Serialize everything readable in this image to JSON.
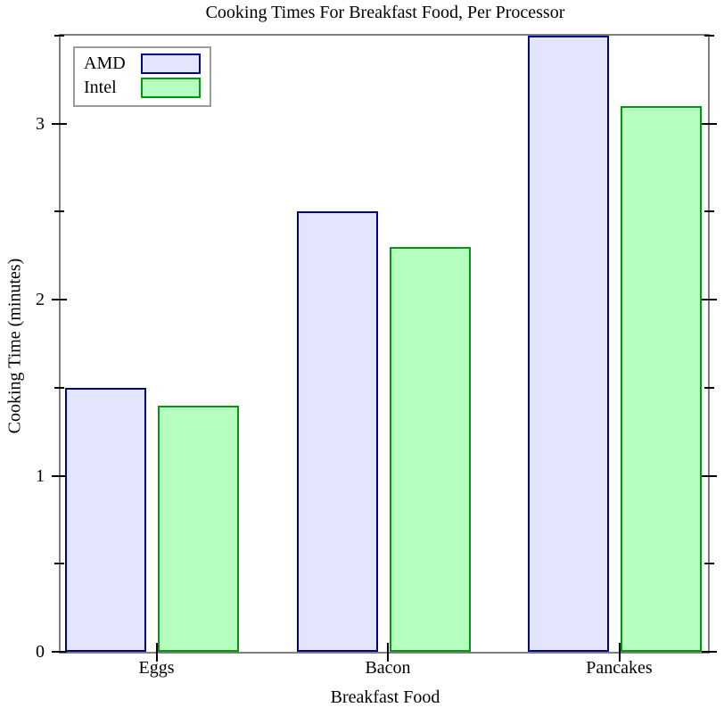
{
  "chart_data": {
    "type": "bar",
    "title": "Cooking Times For Breakfast Food, Per Processor",
    "xlabel": "Breakfast Food",
    "ylabel": "Cooking Time (minutes)",
    "categories": [
      "Eggs",
      "Bacon",
      "Pancakes"
    ],
    "series": [
      {
        "name": "AMD",
        "values": [
          1.5,
          2.5,
          3.5
        ],
        "fill": "#e2e5fb",
        "stroke": "#00008f"
      },
      {
        "name": "Intel",
        "values": [
          1.4,
          2.3,
          3.1
        ],
        "fill": "#b5fec0",
        "stroke": "#00990d"
      }
    ],
    "ylim": [
      0,
      3.5
    ],
    "y_ticks_major": [
      0,
      1,
      2,
      3
    ],
    "y_ticks_minor": [
      0.5,
      1.5,
      2.5,
      3.5
    ],
    "legend_position": "top-left",
    "grid": false,
    "colors": {
      "frame": "#7f7f7f",
      "ticks": "#000000",
      "text": "#000000",
      "background": "#ffffff"
    }
  }
}
